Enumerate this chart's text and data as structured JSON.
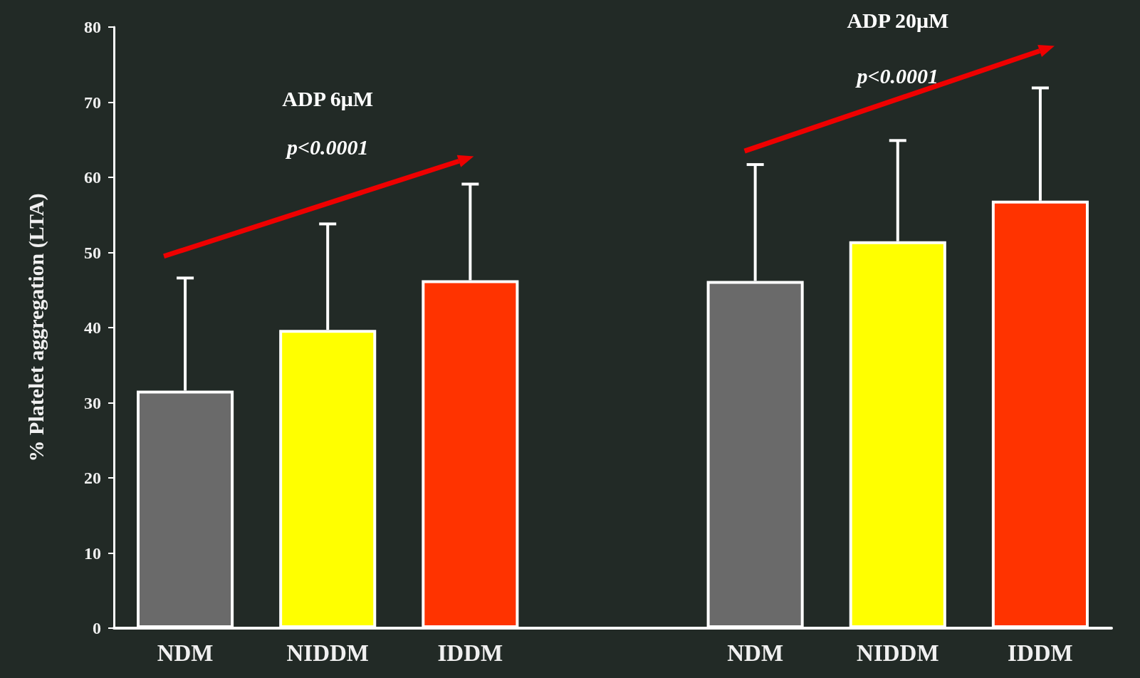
{
  "chart_data": {
    "type": "bar",
    "ylabel": "% Platelet aggregation (LTA)",
    "categories": [
      "NDM",
      "NIDDM",
      "IDDM",
      null,
      "NDM",
      "NIDDM",
      "IDDM"
    ],
    "values": [
      31.6,
      39.7,
      46.3,
      null,
      46.2,
      51.5,
      56.9
    ],
    "colors": [
      "#6a6a6a",
      "#ffff00",
      "#ff3300",
      null,
      "#6a6a6a",
      "#ffff00",
      "#ff3300"
    ],
    "errors": [
      [
        31.6,
        46.6
      ],
      [
        39.7,
        53.8
      ],
      [
        46.3,
        59.1
      ],
      null,
      [
        46.2,
        61.7
      ],
      [
        51.5,
        64.9
      ],
      [
        56.9,
        71.9
      ]
    ],
    "ylim": [
      0,
      80
    ],
    "yticks": [
      0,
      10,
      20,
      30,
      40,
      50,
      60,
      70,
      80
    ],
    "annotations": [
      "ADP 6μM",
      "p<0.0001",
      "ADP 20μM",
      "p<0.0001"
    ],
    "grid": false
  }
}
